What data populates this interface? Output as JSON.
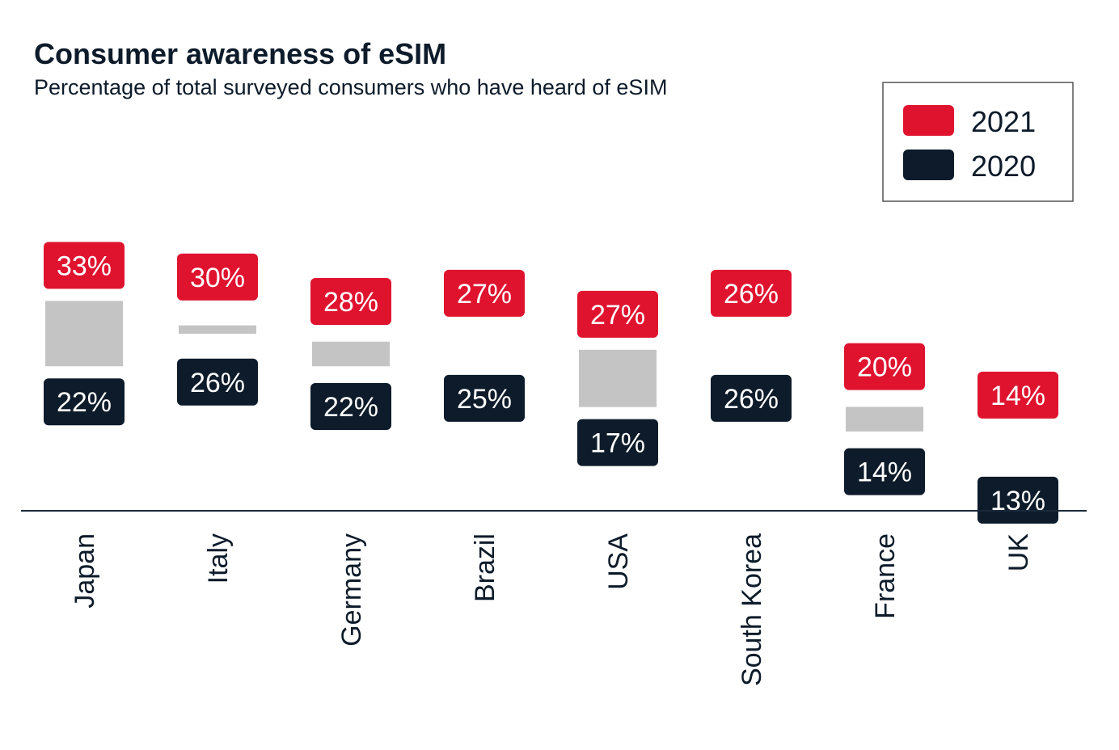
{
  "chart_data": {
    "type": "dumbbell",
    "title": "Consumer awareness of eSIM",
    "subtitle": "Percentage of total surveyed consumers who have heard of eSIM",
    "categories": [
      "Japan",
      "Italy",
      "Germany",
      "Brazil",
      "USA",
      "South Korea",
      "France",
      "UK"
    ],
    "series": [
      {
        "name": "2021",
        "color": "#e0132f",
        "values": [
          33,
          30,
          28,
          27,
          27,
          26,
          20,
          14
        ]
      },
      {
        "name": "2020",
        "color": "#0d1b2a",
        "values": [
          22,
          26,
          22,
          25,
          17,
          26,
          14,
          13
        ]
      }
    ],
    "value_labels": {
      "2021": [
        "33%",
        "30%",
        "28%",
        "27%",
        "27%",
        "26%",
        "20%",
        "14%"
      ],
      "2020": [
        "22%",
        "26%",
        "22%",
        "25%",
        "17%",
        "26%",
        "14%",
        "13%"
      ]
    },
    "gap_color": "#c4c4c4",
    "legend_position": "top-right",
    "grid": false
  }
}
